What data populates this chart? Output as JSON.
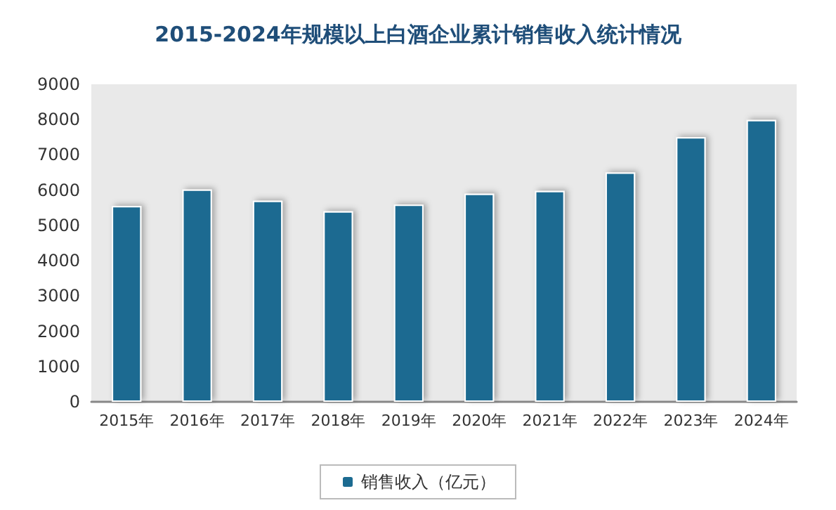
{
  "chart_data": {
    "type": "bar",
    "title": "2015-2024年规模以上白酒企业累计销售收入统计情况",
    "categories": [
      "2015年",
      "2016年",
      "2017年",
      "2018年",
      "2019年",
      "2020年",
      "2021年",
      "2022年",
      "2023年",
      "2024年"
    ],
    "series": [
      {
        "name": "销售收入（亿元）",
        "color": "#1c6b91",
        "values": [
          5550,
          6020,
          5700,
          5400,
          5590,
          5900,
          5980,
          6500,
          7500,
          7990
        ]
      }
    ],
    "ylim": [
      0,
      9000
    ],
    "yticks": [
      0,
      1000,
      2000,
      3000,
      4000,
      5000,
      6000,
      7000,
      8000,
      9000
    ],
    "grid": false,
    "legend": "bottom"
  }
}
